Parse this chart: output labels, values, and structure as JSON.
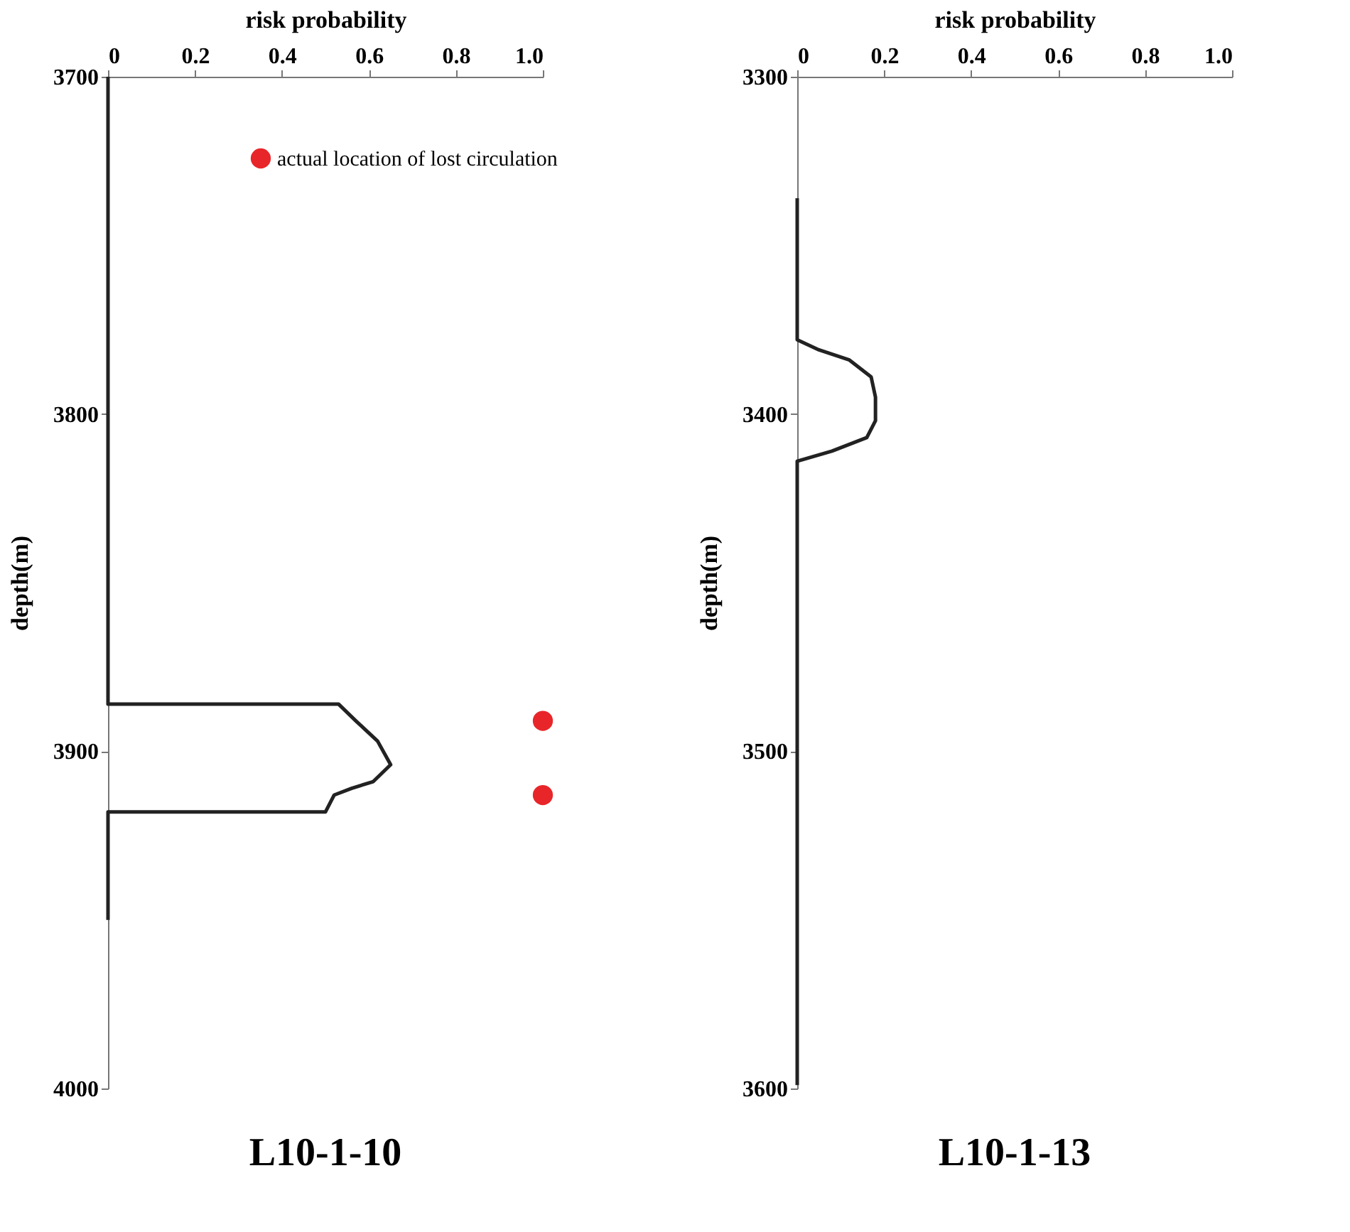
{
  "chart_data": [
    {
      "type": "line",
      "title": "L10-1-10",
      "xlabel": "risk probability",
      "ylabel": "depth(m)",
      "xlim": [
        0,
        1
      ],
      "xticks": [
        0,
        0.2,
        0.4,
        0.6,
        0.8,
        {
          "value": 1,
          "label": "1.0"
        }
      ],
      "ylim": [
        4000,
        3700
      ],
      "yticks": [
        3700,
        3800,
        3900,
        4000
      ],
      "grid": false,
      "legend": "top right",
      "series": [
        {
          "color": "#222222",
          "x": [
            0,
            0,
            0.53,
            0.57,
            0.62,
            0.65,
            0.61,
            0.56,
            0.52,
            0.5,
            0,
            0
          ],
          "values": [
            3700,
            3886,
            3886,
            3891,
            3897,
            3904,
            3909,
            3911,
            3913,
            3918,
            3918,
            3950
          ]
        },
        {
          "type": "scatter",
          "name": "actual location of lost circulation",
          "color": "#e8262a",
          "marker": "circle",
          "x": [
            1,
            1
          ],
          "values": [
            3891,
            3913
          ]
        }
      ]
    },
    {
      "type": "line",
      "title": "L10-1-13",
      "xlabel": "risk probability",
      "ylabel": "depth(m)",
      "xlim": [
        0,
        1
      ],
      "xticks": [
        0,
        0.2,
        0.4,
        0.6,
        0.8,
        {
          "value": 1,
          "label": "1.0"
        }
      ],
      "ylim": [
        3600,
        3300
      ],
      "yticks": [
        3300,
        3400,
        3500,
        3600
      ],
      "grid": false,
      "legend": false,
      "series": [
        {
          "color": "#222222",
          "x": [
            0,
            0,
            0.05,
            0.12,
            0.17,
            0.18,
            0.18,
            0.16,
            0.08,
            0,
            0
          ],
          "values": [
            3336,
            3378,
            3381,
            3384,
            3389,
            3395,
            3402,
            3407,
            3411,
            3414,
            3599
          ]
        }
      ]
    }
  ]
}
